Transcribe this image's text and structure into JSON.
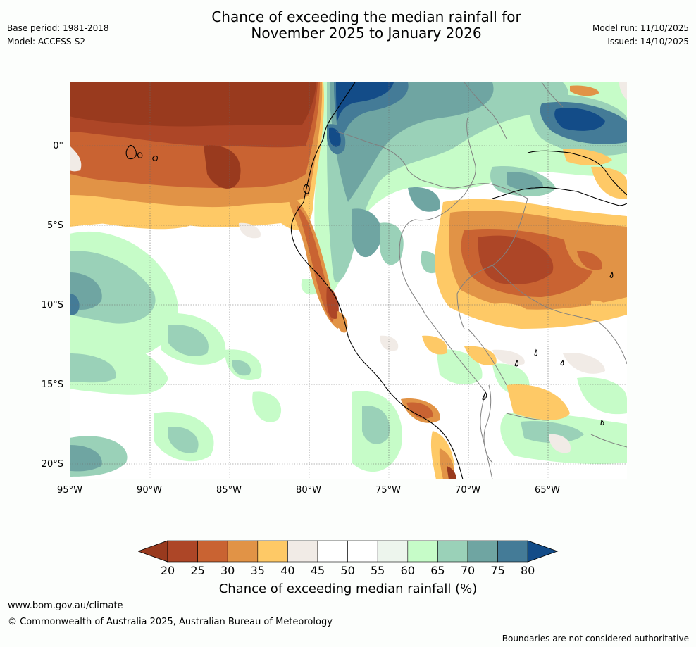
{
  "header": {
    "title_line1": "Chance of exceeding the median rainfall for",
    "title_line2": "November 2025 to January 2026",
    "base_period": "Base period: 1981-2018",
    "model": "Model: ACCESS-S2",
    "model_run": "Model run: 11/10/2025",
    "issued": "Issued: 14/10/2025"
  },
  "map": {
    "lat_labels": [
      "0°",
      "5°S",
      "10°S",
      "15°S",
      "20°S"
    ],
    "lon_labels": [
      "95°W",
      "90°W",
      "85°W",
      "80°W",
      "75°W",
      "70°W",
      "65°W"
    ]
  },
  "legend": {
    "ticks": [
      "20",
      "25",
      "30",
      "35",
      "40",
      "45",
      "50",
      "55",
      "60",
      "65",
      "70",
      "75",
      "80"
    ],
    "colors": [
      "#993a1e",
      "#ad4627",
      "#c96332",
      "#e19346",
      "#fec966",
      "#f1ebe6",
      "#ffffff",
      "#ffffff",
      "#edf5ed",
      "#c6fcc8",
      "#9ad1b8",
      "#6fa5a2",
      "#447b97",
      "#134c88"
    ],
    "label": "Chance of exceeding median rainfall (%)"
  },
  "footer": {
    "site": "www.bom.gov.au/climate",
    "copyright": "© Commonwealth of Australia 2025, Australian Bureau of Meteorology",
    "disclaimer": "Boundaries are not considered authoritative"
  }
}
